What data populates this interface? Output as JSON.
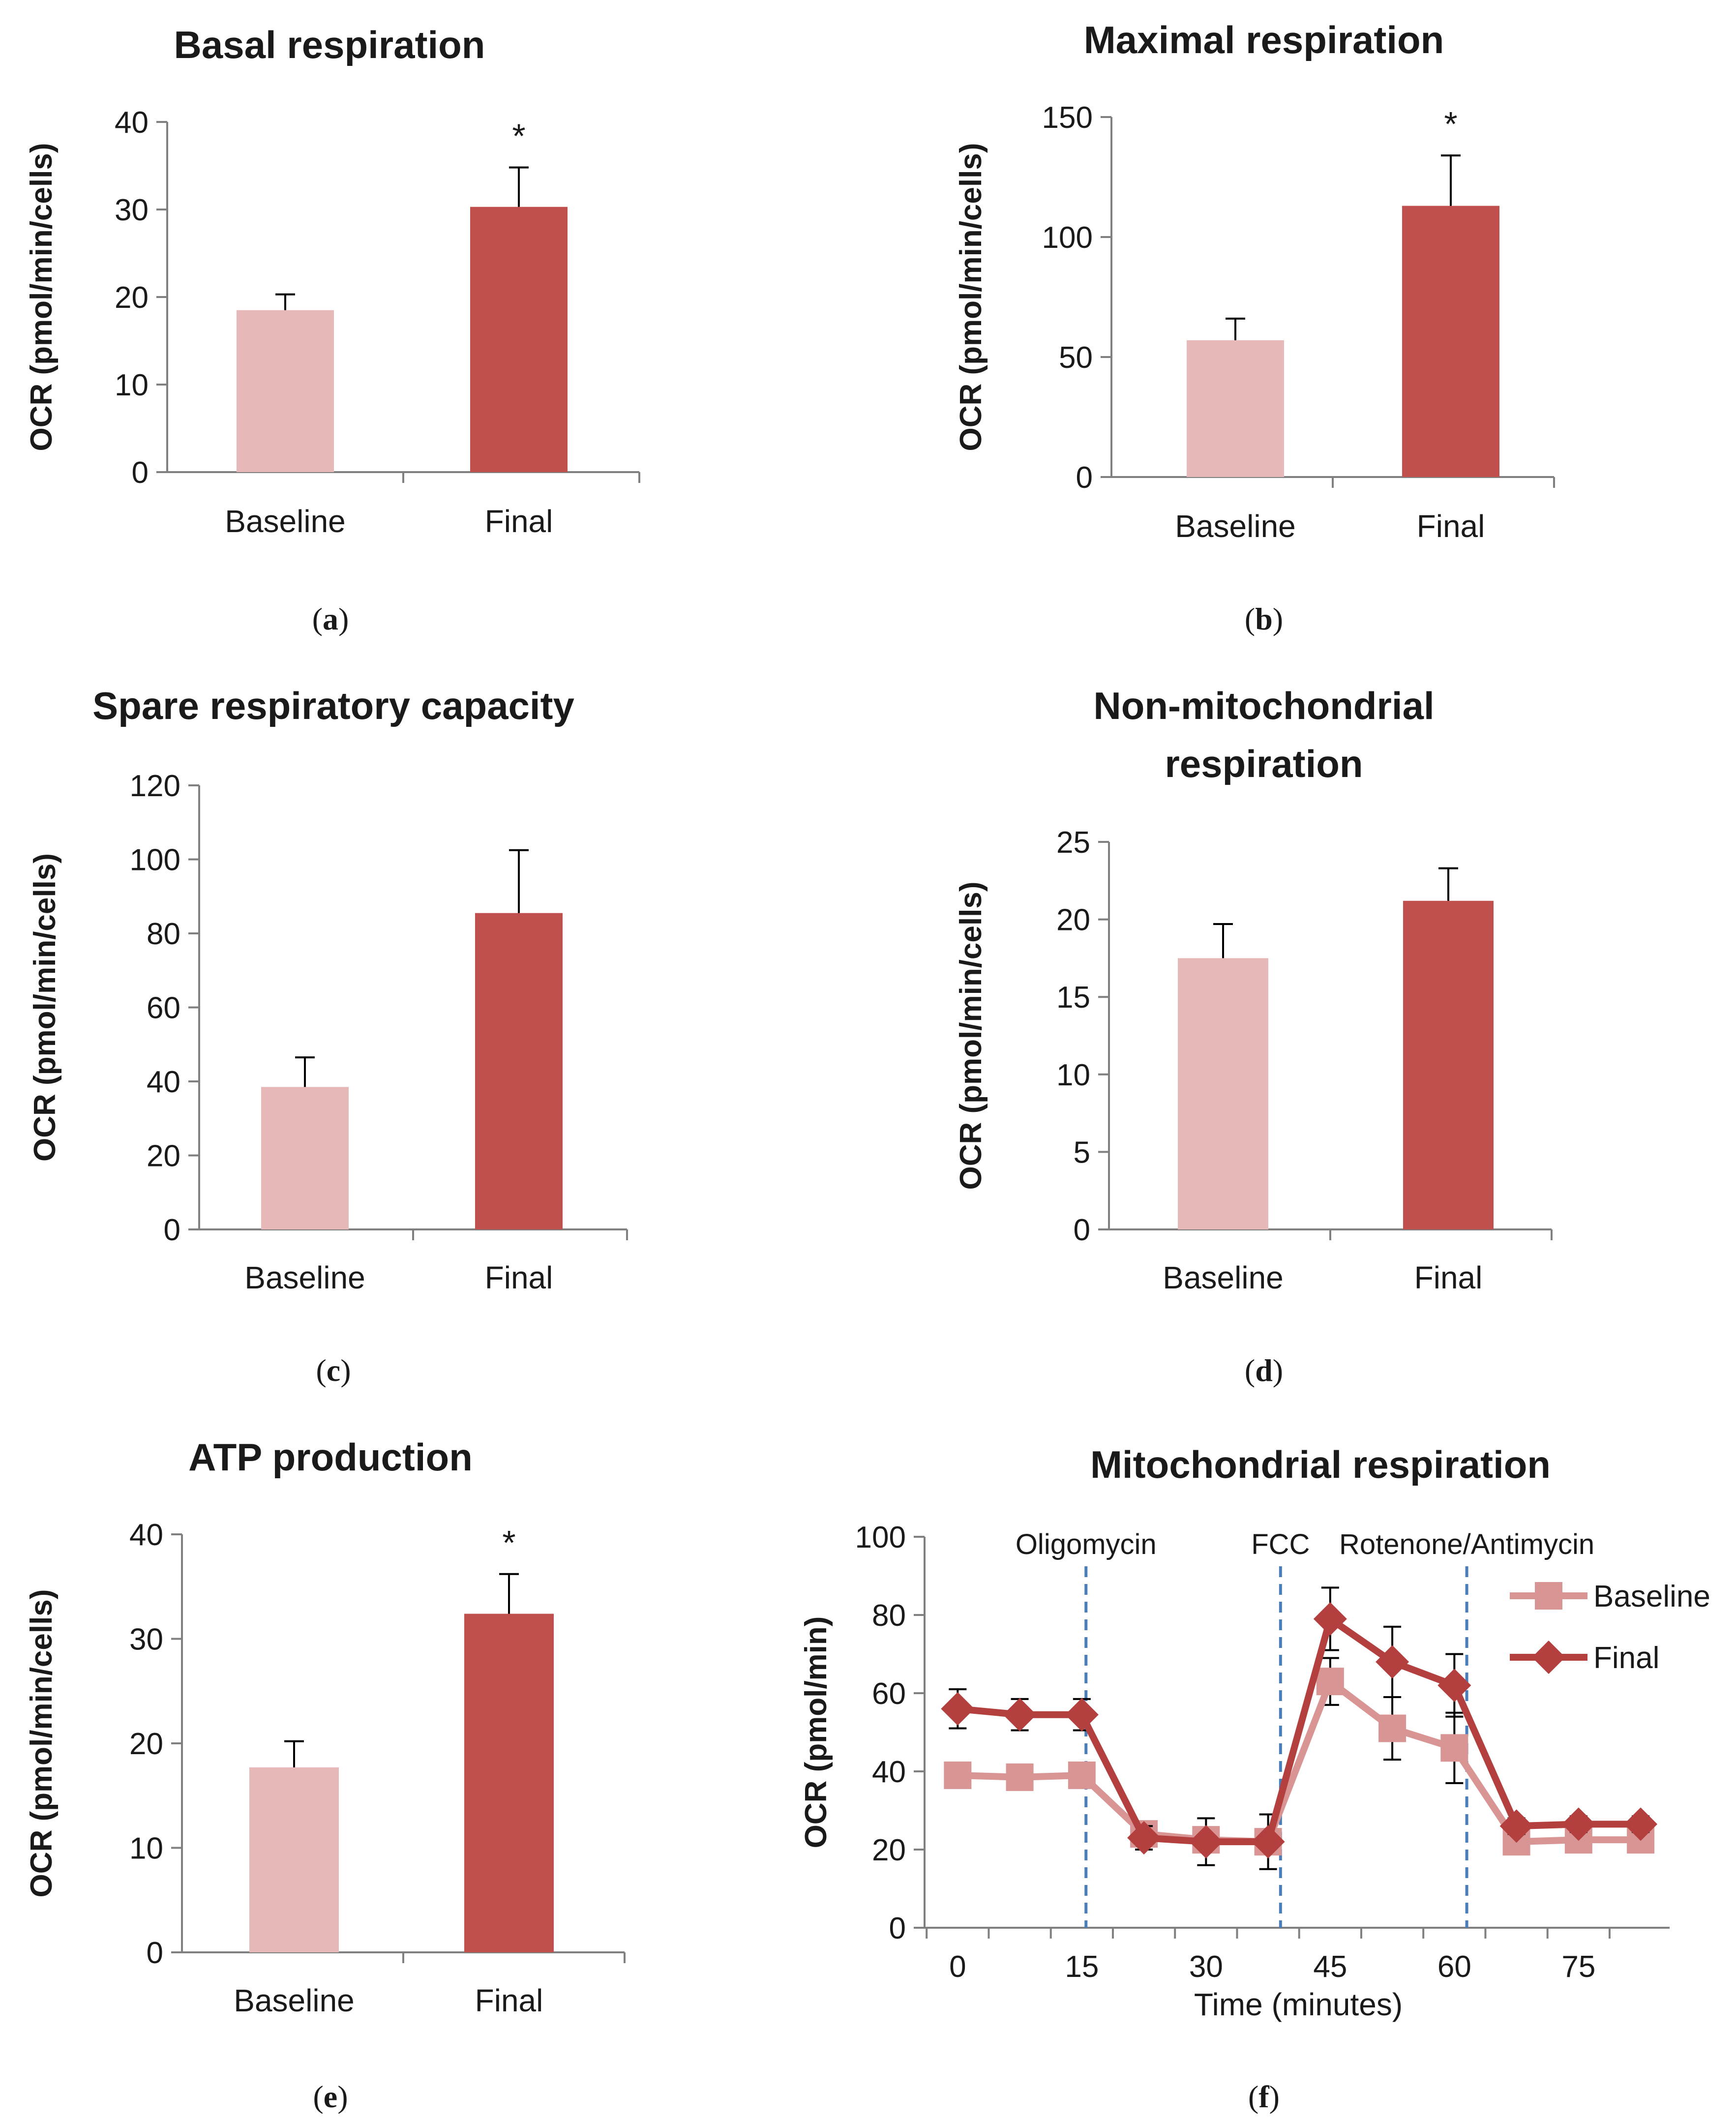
{
  "colors": {
    "baseline": "#e6b8b8",
    "final": "#c0504d",
    "baseline_line": "#d99594",
    "final_line": "#b3403e",
    "axis": "#808080",
    "injection": "#4a7ebb"
  },
  "chart_data": [
    {
      "panel": "a",
      "type": "bar",
      "title": "Basal respiration",
      "categories": [
        "Baseline",
        "Final"
      ],
      "values": [
        18.5,
        30.3
      ],
      "errors": [
        1.8,
        4.5
      ],
      "ylabel": "OCR (pmol/min/cells)",
      "ylim": [
        0,
        40
      ],
      "yticks": [
        "0",
        "10",
        "20",
        "30",
        "40"
      ],
      "significance": [
        "",
        "*"
      ]
    },
    {
      "panel": "b",
      "type": "bar",
      "title": "Maximal respiration",
      "categories": [
        "Baseline",
        "Final"
      ],
      "values": [
        57,
        113
      ],
      "errors": [
        9,
        21
      ],
      "ylabel": "OCR (pmol/min/cells)",
      "ylim": [
        0,
        150
      ],
      "yticks": [
        "0",
        "50",
        "100",
        "150"
      ],
      "significance": [
        "",
        "*"
      ]
    },
    {
      "panel": "c",
      "type": "bar",
      "title": "Spare respiratory capacity",
      "categories": [
        "Baseline",
        "Final"
      ],
      "values": [
        38.5,
        85.5
      ],
      "errors": [
        8,
        17
      ],
      "ylabel": "OCR (pmol/min/cells)",
      "ylim": [
        0,
        120
      ],
      "yticks": [
        "0",
        "20",
        "40",
        "60",
        "80",
        "100",
        "120"
      ],
      "significance": [
        "",
        ""
      ]
    },
    {
      "panel": "d",
      "type": "bar",
      "title": "Non-mitochondrial respiration",
      "title_lines": [
        "Non-mitochondrial",
        "respiration"
      ],
      "categories": [
        "Baseline",
        "Final"
      ],
      "values": [
        17.5,
        21.2
      ],
      "errors": [
        2.2,
        2.1
      ],
      "ylabel": "OCR (pmol/min/cells)",
      "ylim": [
        0,
        25
      ],
      "yticks": [
        "0",
        "5",
        "10",
        "15",
        "20",
        "25"
      ],
      "significance": [
        "",
        ""
      ]
    },
    {
      "panel": "e",
      "type": "bar",
      "title": "ATP production",
      "categories": [
        "Baseline",
        "Final"
      ],
      "values": [
        17.7,
        32.4
      ],
      "errors": [
        2.5,
        3.8
      ],
      "ylabel": "OCR (pmol/min/cells)",
      "ylim": [
        0,
        40
      ],
      "yticks": [
        "0",
        "10",
        "20",
        "30",
        "40"
      ],
      "significance": [
        "",
        "*"
      ]
    },
    {
      "panel": "f",
      "type": "line",
      "title": "Mitochondrial respiration",
      "xlabel": "Time (minutes)",
      "ylabel": "OCR (pmol/min)",
      "xlim": [
        -4,
        86
      ],
      "ylim": [
        0,
        100
      ],
      "xticks": [
        "0",
        "15",
        "30",
        "45",
        "60",
        "75"
      ],
      "yticks": [
        "0",
        "20",
        "40",
        "60",
        "80",
        "100"
      ],
      "injections": [
        {
          "label": "Oligomycin",
          "x": 15.5
        },
        {
          "label": "FCC",
          "x": 39
        },
        {
          "label": "Rotenone/Antimycin",
          "x": 61.5
        }
      ],
      "x": [
        0,
        7.5,
        15,
        22.5,
        30,
        37.5,
        45,
        52.5,
        60,
        67.5,
        75,
        82.5
      ],
      "series": [
        {
          "name": "Baseline",
          "marker": "square",
          "values": [
            39,
            38.5,
            39,
            24,
            22.5,
            22,
            63,
            51,
            46,
            22,
            22.5,
            22.5
          ],
          "errors": [
            2.5,
            2,
            2,
            2,
            2,
            2,
            6,
            8,
            9,
            2,
            2,
            2
          ]
        },
        {
          "name": "Final",
          "marker": "diamond",
          "values": [
            56,
            54.5,
            54.5,
            23,
            22,
            22,
            79,
            68,
            62,
            26,
            26.5,
            26.5
          ],
          "errors": [
            5,
            4,
            4,
            3,
            6,
            7,
            8,
            9,
            8,
            2,
            2,
            2
          ]
        }
      ]
    }
  ]
}
